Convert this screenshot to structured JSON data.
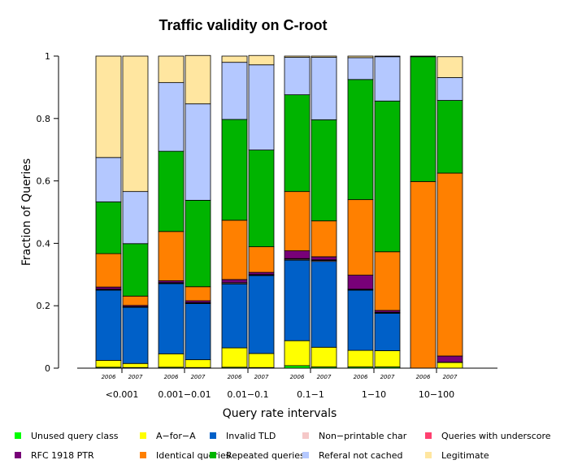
{
  "chart_data": {
    "type": "bar",
    "stacked": true,
    "title": "Traffic validity on C-root",
    "xlabel": "Query rate intervals",
    "ylabel": "Fraction of Queries",
    "ylim": [
      0,
      1
    ],
    "yticks": [
      "0",
      "0.2",
      "0.4",
      "0.6",
      "0.8",
      "1"
    ],
    "groups": [
      "<0.001",
      "0.001−0.01",
      "0.01−0.1",
      "0.1−1",
      "1−10",
      "10−100"
    ],
    "years": [
      "2006",
      "2007"
    ],
    "series": [
      {
        "name": "Unused query class",
        "color": "#00ff00",
        "values": [
          0.003,
          0.002,
          0.003,
          0.002,
          0.003,
          0.002,
          0.008,
          0.004,
          0.004,
          0.004,
          0.0,
          0.0
        ]
      },
      {
        "name": "A−for−A",
        "color": "#ffff00",
        "values": [
          0.022,
          0.013,
          0.043,
          0.025,
          0.062,
          0.045,
          0.08,
          0.063,
          0.053,
          0.052,
          0.0,
          0.018
        ]
      },
      {
        "name": "Invalid TLD",
        "color": "#0060c8",
        "values": [
          0.225,
          0.18,
          0.225,
          0.18,
          0.205,
          0.25,
          0.258,
          0.275,
          0.193,
          0.12,
          0.0,
          0.0
        ]
      },
      {
        "name": "Non−printable char",
        "color": "#f5c8c8",
        "values": [
          0.002,
          0.001,
          0.002,
          0.002,
          0.003,
          0.002,
          0.003,
          0.003,
          0.002,
          0.002,
          0.0,
          0.0
        ]
      },
      {
        "name": "Queries with underscore",
        "color": "#ff4070",
        "values": [
          0.001,
          0.001,
          0.001,
          0.001,
          0.001,
          0.001,
          0.002,
          0.002,
          0.001,
          0.001,
          0.0,
          0.001
        ]
      },
      {
        "name": "RFC 1918 PTR",
        "color": "#780078",
        "values": [
          0.007,
          0.004,
          0.006,
          0.006,
          0.01,
          0.007,
          0.025,
          0.01,
          0.045,
          0.006,
          0.0,
          0.02
        ]
      },
      {
        "name": "Identical queries",
        "color": "#ff8000",
        "values": [
          0.107,
          0.03,
          0.158,
          0.045,
          0.19,
          0.082,
          0.19,
          0.115,
          0.242,
          0.188,
          0.598,
          0.586
        ]
      },
      {
        "name": "Repeated queries",
        "color": "#00b400",
        "values": [
          0.166,
          0.168,
          0.257,
          0.277,
          0.323,
          0.31,
          0.31,
          0.324,
          0.385,
          0.483,
          0.4,
          0.233
        ]
      },
      {
        "name": "Referal not cached",
        "color": "#b4c8ff",
        "values": [
          0.142,
          0.167,
          0.22,
          0.309,
          0.183,
          0.273,
          0.12,
          0.2,
          0.07,
          0.142,
          0.0,
          0.073
        ]
      },
      {
        "name": "Legitimate",
        "color": "#ffe6a0",
        "values": [
          0.325,
          0.434,
          0.085,
          0.155,
          0.02,
          0.03,
          0.004,
          0.004,
          0.005,
          0.002,
          0.002,
          0.067
        ]
      }
    ]
  }
}
